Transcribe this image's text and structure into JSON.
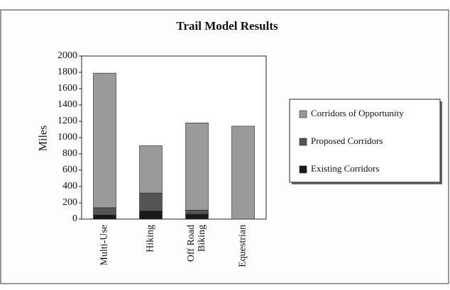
{
  "chart_data": {
    "type": "stacked_bar",
    "title": "Trail Model Results",
    "y_label": "Miles",
    "categories": [
      "Multi-Use",
      "Hiking",
      "Off Road Biking",
      "Equestrian"
    ],
    "series": [
      {
        "name": "Corridors of Opportunity",
        "color": "#9a9a9a",
        "values": [
          1650,
          580,
          1070,
          1140
        ]
      },
      {
        "name": "Proposed Corridors",
        "color": "#555555",
        "values": [
          90,
          220,
          50,
          0
        ]
      },
      {
        "name": "Existing Corridors",
        "color": "#1a1a1a",
        "values": [
          50,
          100,
          60,
          0
        ]
      }
    ],
    "ylim": [
      0,
      2000
    ],
    "yticks": [
      0,
      200,
      400,
      600,
      800,
      1000,
      1200,
      1400,
      1600,
      1800,
      2000
    ],
    "legend": "right"
  }
}
